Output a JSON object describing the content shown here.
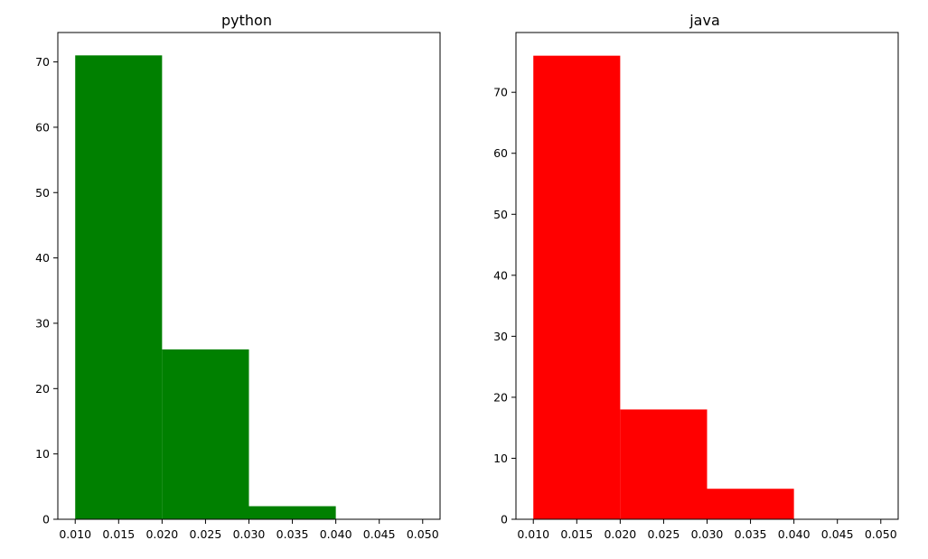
{
  "chart_data": [
    {
      "type": "bar",
      "title": "python",
      "color": "#008000",
      "bins": [
        {
          "x0": 0.01,
          "x1": 0.02,
          "value": 71
        },
        {
          "x0": 0.02,
          "x1": 0.03,
          "value": 26
        },
        {
          "x0": 0.03,
          "x1": 0.04,
          "value": 2
        },
        {
          "x0": 0.04,
          "x1": 0.05,
          "value": 0
        }
      ],
      "xlim": [
        0.008,
        0.052
      ],
      "ylim": [
        0,
        74.5
      ],
      "xticks": [
        0.01,
        0.015,
        0.02,
        0.025,
        0.03,
        0.035,
        0.04,
        0.045,
        0.05
      ],
      "xtick_labels": [
        "0.010",
        "0.015",
        "0.020",
        "0.025",
        "0.030",
        "0.035",
        "0.040",
        "0.045",
        "0.050"
      ],
      "yticks": [
        0,
        10,
        20,
        30,
        40,
        50,
        60,
        70
      ],
      "ytick_labels": [
        "0",
        "10",
        "20",
        "30",
        "40",
        "50",
        "60",
        "70"
      ],
      "grid": false
    },
    {
      "type": "bar",
      "title": "java",
      "color": "#ff0000",
      "bins": [
        {
          "x0": 0.01,
          "x1": 0.02,
          "value": 76
        },
        {
          "x0": 0.02,
          "x1": 0.03,
          "value": 18
        },
        {
          "x0": 0.03,
          "x1": 0.04,
          "value": 5
        },
        {
          "x0": 0.04,
          "x1": 0.05,
          "value": 0
        }
      ],
      "xlim": [
        0.008,
        0.052
      ],
      "ylim": [
        0,
        79.8
      ],
      "xticks": [
        0.01,
        0.015,
        0.02,
        0.025,
        0.03,
        0.035,
        0.04,
        0.045,
        0.05
      ],
      "xtick_labels": [
        "0.010",
        "0.015",
        "0.020",
        "0.025",
        "0.030",
        "0.035",
        "0.040",
        "0.045",
        "0.050"
      ],
      "yticks": [
        0,
        10,
        20,
        30,
        40,
        50,
        60,
        70
      ],
      "ytick_labels": [
        "0",
        "10",
        "20",
        "30",
        "40",
        "50",
        "60",
        "70"
      ],
      "grid": false
    }
  ]
}
